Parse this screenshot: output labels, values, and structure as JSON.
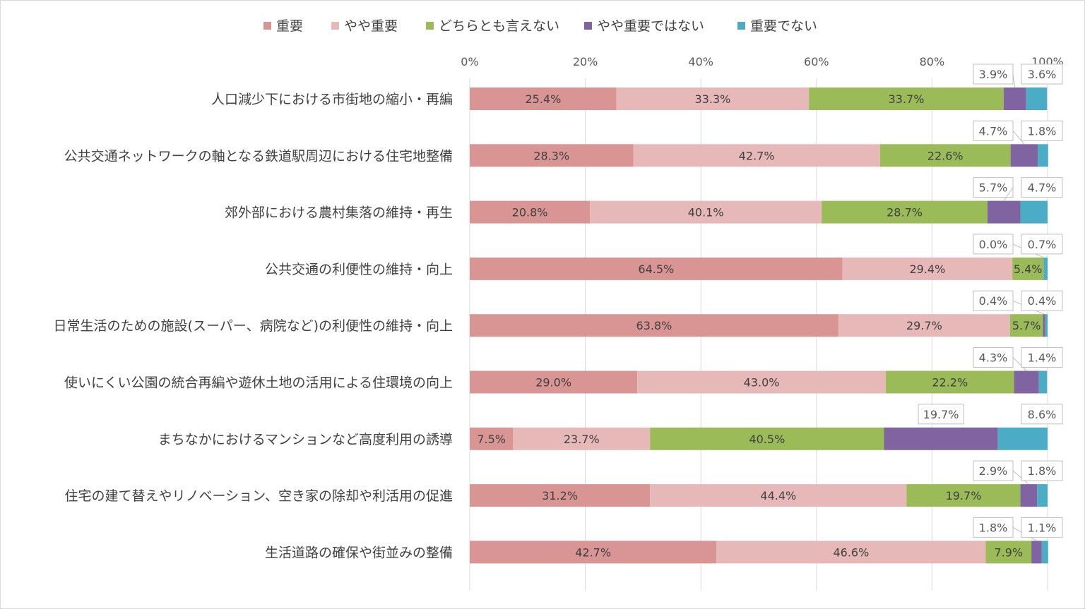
{
  "chart_data": {
    "type": "bar",
    "orientation": "horizontal",
    "stacked": true,
    "percent_stacked": true,
    "legend_position": "top",
    "grid": true,
    "xlim": [
      0,
      100
    ],
    "x_ticks": [
      "0%",
      "20%",
      "40%",
      "60%",
      "80%",
      "100%"
    ],
    "categories": [
      "人口減少下における市街地の縮小・再編",
      "公共交通ネットワークの軸となる鉄道駅周辺における住宅地整備",
      "郊外部における農村集落の維持・再生",
      "公共交通の利便性の維持・向上",
      "日常生活のための施設(スーパー、病院など)の利便性の維持・向上",
      "使いにくい公園の統合再編や遊休土地の活用による住環境の向上",
      "まちなかにおけるマンションなど高度利用の誘導",
      "住宅の建て替えやリノベーション、空き家の除却や利活用の促進",
      "生活道路の確保や街並みの整備"
    ],
    "series": [
      {
        "name": "重要",
        "color": "#d99594",
        "values": [
          25.4,
          28.3,
          20.8,
          64.5,
          63.8,
          29.0,
          7.5,
          31.2,
          42.7
        ],
        "labels": [
          "25.4%",
          "28.3%",
          "20.8%",
          "64.5%",
          "63.8%",
          "29.0%",
          "7.5%",
          "31.2%",
          "42.7%"
        ]
      },
      {
        "name": "やや重要",
        "color": "#e6b9b8",
        "values": [
          33.3,
          42.7,
          40.1,
          29.4,
          29.7,
          43.0,
          23.7,
          44.4,
          46.6
        ],
        "labels": [
          "33.3%",
          "42.7%",
          "40.1%",
          "29.4%",
          "29.7%",
          "43.0%",
          "23.7%",
          "44.4%",
          "46.6%"
        ]
      },
      {
        "name": "どちらとも言えない",
        "color": "#9bbb59",
        "values": [
          33.7,
          22.6,
          28.7,
          5.4,
          5.7,
          22.2,
          40.5,
          19.7,
          7.9
        ],
        "labels": [
          "33.7%",
          "22.6%",
          "28.7%",
          "5.4%",
          "5.7%",
          "22.2%",
          "40.5%",
          "19.7%",
          "7.9%"
        ]
      },
      {
        "name": "やや重要ではない",
        "color": "#8064a2",
        "values": [
          3.9,
          4.7,
          5.7,
          0.0,
          0.4,
          4.3,
          19.7,
          2.9,
          1.8
        ],
        "labels": [
          "3.9%",
          "4.7%",
          "5.7%",
          "0.0%",
          "0.4%",
          "4.3%",
          "19.7%",
          "2.9%",
          "1.8%"
        ]
      },
      {
        "name": "重要でない",
        "color": "#4bacc6",
        "values": [
          3.6,
          1.8,
          4.7,
          0.7,
          0.4,
          1.4,
          8.6,
          1.8,
          1.1
        ],
        "labels": [
          "3.6%",
          "1.8%",
          "4.7%",
          "0.7%",
          "0.4%",
          "1.4%",
          "8.6%",
          "1.8%",
          "1.1%"
        ]
      }
    ]
  }
}
